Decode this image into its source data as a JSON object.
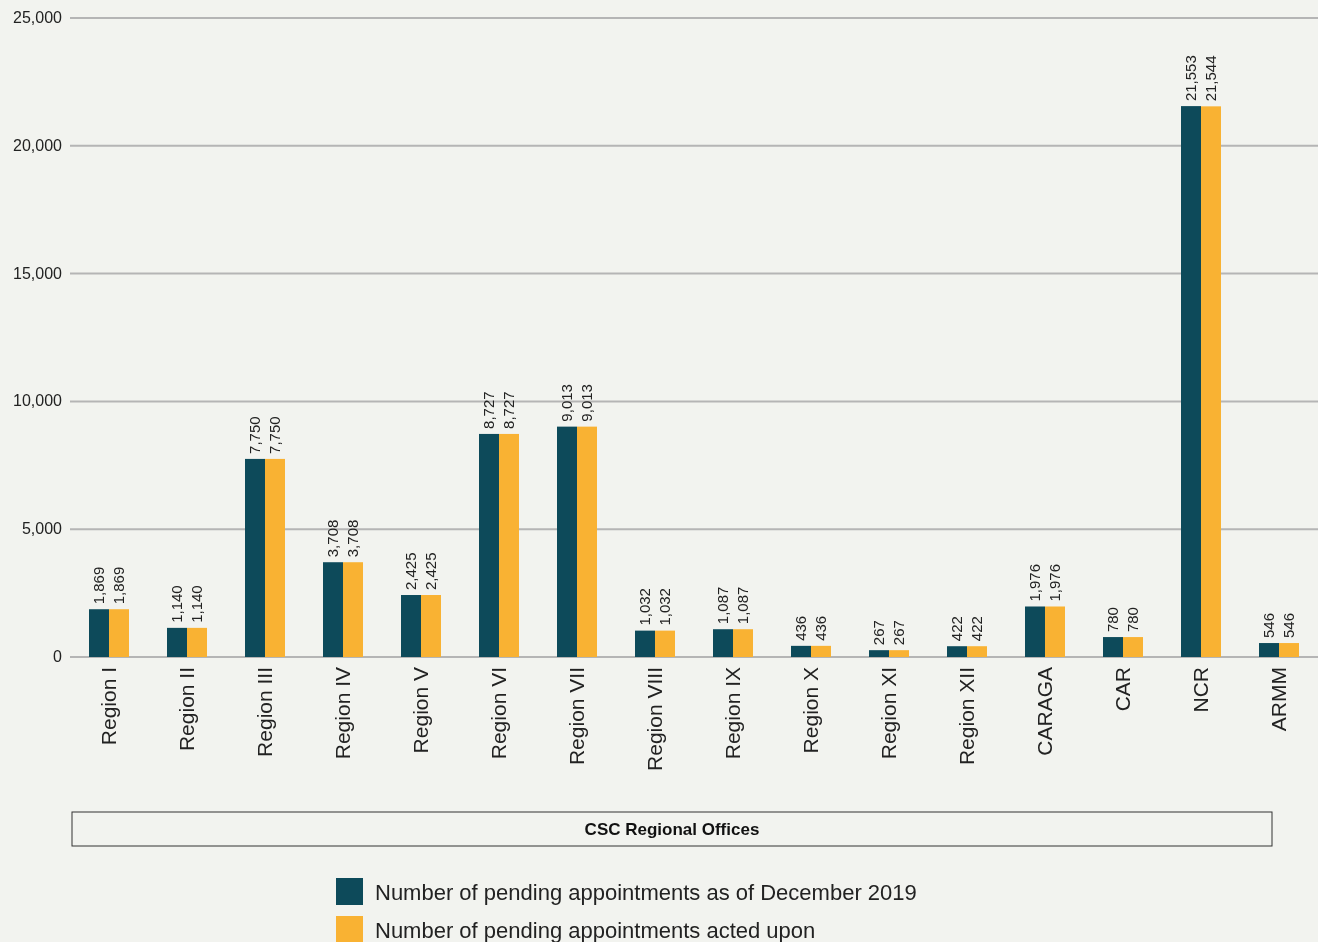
{
  "chart_data": {
    "type": "bar",
    "xlabel": "CSC Regional Offices",
    "categories": [
      "Region I",
      "Region II",
      "Region III",
      "Region IV",
      "Region V",
      "Region VI",
      "Region VII",
      "Region VIII",
      "Region IX",
      "Region X",
      "Region XI",
      "Region XII",
      "CARAGA",
      "CAR",
      "NCR",
      "ARMM"
    ],
    "series": [
      {
        "name": "Number of pending appointments as of December 2019",
        "color": "#0d4a5a",
        "values": [
          1869,
          1140,
          7750,
          3708,
          2425,
          8727,
          9013,
          1032,
          1087,
          436,
          267,
          422,
          1976,
          780,
          21553,
          546
        ],
        "value_labels": [
          "1,869",
          "1,140",
          "7,750",
          "3,708",
          "2,425",
          "8,727",
          "9,013",
          "1,032",
          "1,087",
          "436",
          "267",
          "422",
          "1,976",
          "780",
          "21,553",
          "546"
        ]
      },
      {
        "name": "Number of pending appointments acted upon",
        "color": "#f9b233",
        "values": [
          1869,
          1140,
          7750,
          3708,
          2425,
          8727,
          9013,
          1032,
          1087,
          436,
          267,
          422,
          1976,
          780,
          21544,
          546
        ],
        "value_labels": [
          "1,869",
          "1,140",
          "7,750",
          "3,708",
          "2,425",
          "8,727",
          "9,013",
          "1,032",
          "1,087",
          "436",
          "267",
          "422",
          "1,976",
          "780",
          "21,544",
          "546"
        ]
      }
    ],
    "ylim": [
      0,
      25000
    ],
    "yticks": [
      0,
      {
        "value": 5000,
        "label": "5,000"
      },
      {
        "value": 10000,
        "label": "10,000"
      },
      {
        "value": 15000,
        "label": "15,000"
      },
      {
        "value": 20000,
        "label": "20,000"
      },
      {
        "value": 25000,
        "label": "25,000"
      }
    ],
    "grid": "y",
    "legend": "bottom"
  }
}
